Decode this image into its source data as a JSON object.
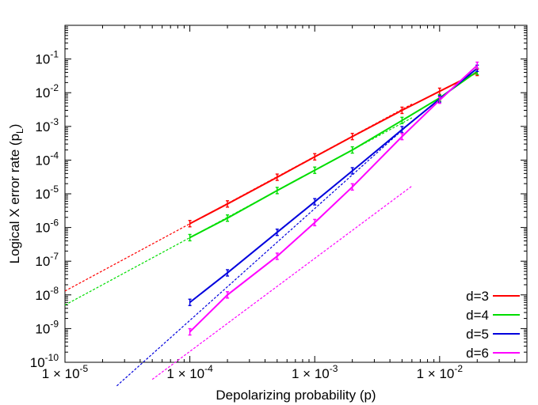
{
  "chart_data": {
    "type": "line",
    "xlabel": "Depolarizing probability (p)",
    "ylabel": "Logical X error rate (p",
    "ylabel_sub": "L",
    "ylabel_end": ")",
    "xscale": "log",
    "yscale": "log",
    "xlim": [
      1e-05,
      0.05
    ],
    "ylim": [
      1e-10,
      1
    ],
    "x_ticks": [
      {
        "mantissa": "1 × 10",
        "exp": "-5",
        "value": 1e-05
      },
      {
        "mantissa": "1 × 10",
        "exp": "-4",
        "value": 0.0001
      },
      {
        "mantissa": "1 × 10",
        "exp": "-3",
        "value": 0.001
      },
      {
        "mantissa": "1 × 10",
        "exp": "-2",
        "value": 0.01
      }
    ],
    "y_ticks": [
      {
        "base": "10",
        "exp": "-10",
        "value": 1e-10
      },
      {
        "base": "10",
        "exp": "-9",
        "value": 1e-09
      },
      {
        "base": "10",
        "exp": "-8",
        "value": 1e-08
      },
      {
        "base": "10",
        "exp": "-7",
        "value": 1e-07
      },
      {
        "base": "10",
        "exp": "-6",
        "value": 1e-06
      },
      {
        "base": "10",
        "exp": "-5",
        "value": 1e-05
      },
      {
        "base": "10",
        "exp": "-4",
        "value": 0.0001
      },
      {
        "base": "10",
        "exp": "-3",
        "value": 0.001
      },
      {
        "base": "10",
        "exp": "-2",
        "value": 0.01
      },
      {
        "base": "10",
        "exp": "-1",
        "value": 0.1
      }
    ],
    "grid": false,
    "legend_position": "bottom-right",
    "series": [
      {
        "name": "d=3",
        "color": "#ff0000",
        "x": [
          0.0001,
          0.0002,
          0.0005,
          0.001,
          0.002,
          0.005,
          0.01,
          0.02
        ],
        "y": [
          1.3e-06,
          5e-06,
          3.1e-05,
          0.000125,
          0.0005,
          0.003,
          0.011,
          0.04
        ],
        "fit": {
          "x": [
            1e-05,
            0.006
          ],
          "y": [
            1.3e-08,
            0.0046
          ]
        }
      },
      {
        "name": "d=4",
        "color": "#00dd00",
        "x": [
          0.0001,
          0.0002,
          0.0005,
          0.001,
          0.002,
          0.005,
          0.01,
          0.02
        ],
        "y": [
          5e-07,
          1.9e-06,
          1.25e-05,
          5e-05,
          0.0002,
          0.0015,
          0.007,
          0.043
        ],
        "fit": {
          "x": [
            1e-05,
            0.006
          ],
          "y": [
            5e-09,
            0.0018
          ]
        }
      },
      {
        "name": "d=5",
        "color": "#0000dd",
        "x": [
          0.0001,
          0.0002,
          0.0005,
          0.001,
          0.002,
          0.005,
          0.01,
          0.02
        ],
        "y": [
          6e-09,
          4.5e-08,
          7.2e-07,
          5.8e-06,
          4.8e-05,
          0.0008,
          0.0065,
          0.053
        ],
        "fit": {
          "x": [
            2.6e-05,
            0.006
          ],
          "y": [
            2e-11,
            0.0014
          ]
        }
      },
      {
        "name": "d=6",
        "color": "#ff00ff",
        "x": [
          0.0001,
          0.0002,
          0.0005,
          0.001,
          0.002,
          0.005,
          0.01,
          0.02
        ],
        "y": [
          8e-10,
          1e-08,
          1.4e-07,
          1.4e-06,
          1.6e-05,
          0.0005,
          0.006,
          0.065
        ],
        "fit": {
          "x": [
            5e-05,
            0.006
          ],
          "y": [
            3.1e-11,
            1.7e-05
          ]
        }
      }
    ]
  }
}
